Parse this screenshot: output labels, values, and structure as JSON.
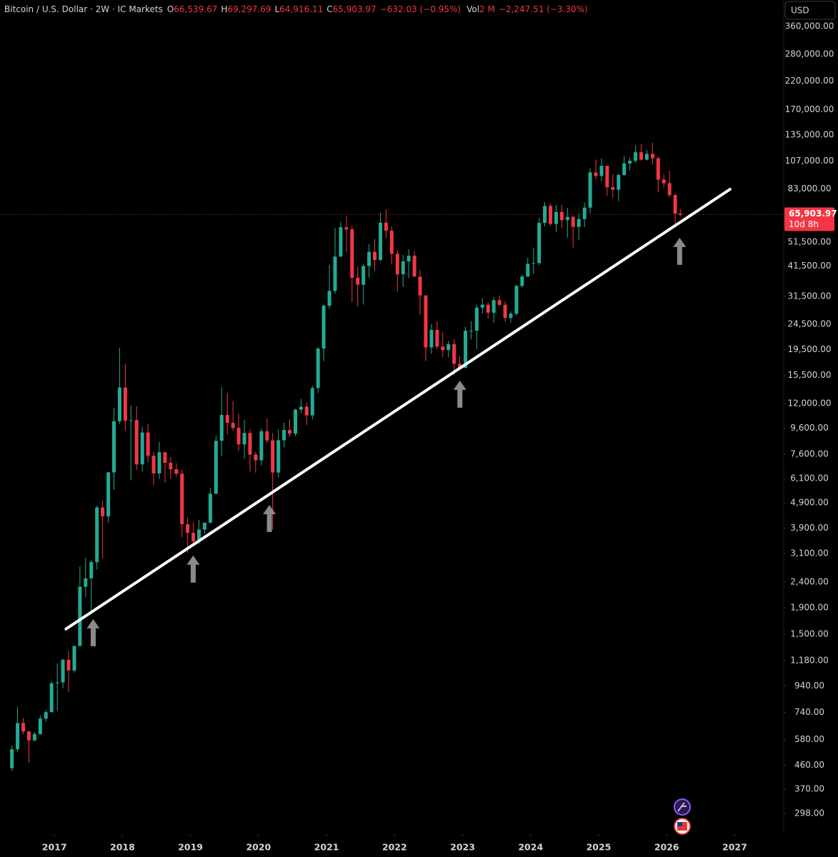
{
  "chart_data": {
    "type": "candlestick",
    "header": {
      "symbol": "Bitcoin / U.S. Dollar · 2W · IC Markets",
      "ohlc": [
        {
          "key": "O",
          "value": "66,539.67"
        },
        {
          "key": "H",
          "value": "69,297.69"
        },
        {
          "key": "L",
          "value": "64,916.11"
        },
        {
          "key": "C",
          "value": "65,903.97"
        }
      ],
      "change": "−632.03 (−0.95%)",
      "volume": {
        "key": "Vol",
        "value": "2 M",
        "change": "−2,247.51 (−3.30%)"
      }
    },
    "currency": "USD",
    "log_scale": true,
    "grid": false,
    "up_color": "#22ab94",
    "down_color": "#f23645",
    "xlim": [
      2016.2,
      2027.72
    ],
    "xticks": [
      2017,
      2018,
      2019,
      2020,
      2021,
      2022,
      2023,
      2024,
      2025,
      2026,
      2027
    ],
    "ylim": [
      247,
      456500
    ],
    "yticks": [
      {
        "value": 360000,
        "label": "360,000.00"
      },
      {
        "value": 280000,
        "label": "280,000.00"
      },
      {
        "value": 220000,
        "label": "220,000.00"
      },
      {
        "value": 170000,
        "label": "170,000.00"
      },
      {
        "value": 135000,
        "label": "135,000.00"
      },
      {
        "value": 107000,
        "label": "107,000.00"
      },
      {
        "value": 83000,
        "label": "83,000.00"
      },
      {
        "value": 51500,
        "label": "51,500.00"
      },
      {
        "value": 41500,
        "label": "41,500.00"
      },
      {
        "value": 31500,
        "label": "31,500.00"
      },
      {
        "value": 24500,
        "label": "24,500.00"
      },
      {
        "value": 19500,
        "label": "19,500.00"
      },
      {
        "value": 15500,
        "label": "15,500.00"
      },
      {
        "value": 12000,
        "label": "12,000.00"
      },
      {
        "value": 9600,
        "label": "9,600.00"
      },
      {
        "value": 7600,
        "label": "7,600.00"
      },
      {
        "value": 6100,
        "label": "6,100.00"
      },
      {
        "value": 4900,
        "label": "4,900.00"
      },
      {
        "value": 3900,
        "label": "3,900.00"
      },
      {
        "value": 3100,
        "label": "3,100.00"
      },
      {
        "value": 2400,
        "label": "2,400.00"
      },
      {
        "value": 1900,
        "label": "1,900.00"
      },
      {
        "value": 1500,
        "label": "1,500.00"
      },
      {
        "value": 1180,
        "label": "1,180.00"
      },
      {
        "value": 940,
        "label": "940.00"
      },
      {
        "value": 740,
        "label": "740.00"
      },
      {
        "value": 580,
        "label": "580.00"
      },
      {
        "value": 460,
        "label": "460.00"
      },
      {
        "value": 370,
        "label": "370.00"
      },
      {
        "value": 298,
        "label": "298.00"
      }
    ],
    "price_line": {
      "value": 65903.97,
      "label": "65,903.97",
      "countdown": "10d 8h",
      "color": "#f23645"
    },
    "x": [
      2016.375,
      2016.458,
      2016.542,
      2016.625,
      2016.708,
      2016.792,
      2016.875,
      2016.958,
      2017.042,
      2017.125,
      2017.208,
      2017.292,
      2017.375,
      2017.458,
      2017.542,
      2017.625,
      2017.708,
      2017.792,
      2017.875,
      2017.958,
      2018.042,
      2018.125,
      2018.208,
      2018.292,
      2018.375,
      2018.458,
      2018.542,
      2018.625,
      2018.708,
      2018.792,
      2018.875,
      2018.958,
      2019.042,
      2019.125,
      2019.208,
      2019.292,
      2019.375,
      2019.458,
      2019.542,
      2019.625,
      2019.708,
      2019.792,
      2019.875,
      2019.958,
      2020.042,
      2020.125,
      2020.208,
      2020.292,
      2020.375,
      2020.458,
      2020.542,
      2020.625,
      2020.708,
      2020.792,
      2020.875,
      2020.958,
      2021.042,
      2021.125,
      2021.208,
      2021.292,
      2021.375,
      2021.458,
      2021.542,
      2021.625,
      2021.708,
      2021.792,
      2021.875,
      2021.958,
      2022.042,
      2022.125,
      2022.208,
      2022.292,
      2022.375,
      2022.458,
      2022.542,
      2022.625,
      2022.708,
      2022.792,
      2022.875,
      2022.958,
      2023.042,
      2023.125,
      2023.208,
      2023.292,
      2023.375,
      2023.458,
      2023.542,
      2023.625,
      2023.708,
      2023.792,
      2023.875,
      2023.958,
      2024.042,
      2024.125,
      2024.208,
      2024.292,
      2024.375,
      2024.458,
      2024.542,
      2024.625,
      2024.708,
      2024.792,
      2024.875,
      2024.958,
      2025.042,
      2025.125,
      2025.208,
      2025.292,
      2025.375,
      2025.458,
      2025.542,
      2025.625,
      2025.708,
      2025.792,
      2025.875,
      2025.958,
      2026.042,
      2026.125,
      2026.2
    ],
    "open": [
      448,
      531,
      673,
      624,
      575,
      609,
      700,
      742,
      963,
      970,
      1190,
      1080,
      1348,
      2300,
      2480,
      2870,
      4700,
      4340,
      6450,
      10230,
      13860,
      10280,
      10330,
      6930,
      9240,
      7490,
      6390,
      7730,
      7030,
      6630,
      6370,
      4040,
      3740,
      3460,
      3850,
      4100,
      5320,
      8570,
      10820,
      10080,
      9630,
      8300,
      9200,
      7570,
      7190,
      9350,
      8600,
      6440,
      8620,
      9450,
      9140,
      11350,
      11660,
      10780,
      13800,
      19700,
      28990,
      33140,
      45140,
      58800,
      57700,
      37300,
      35040,
      41460,
      47100,
      43790,
      61300,
      57000,
      46300,
      38500,
      43200,
      45500,
      37700,
      31800,
      19900,
      23300,
      20050,
      19430,
      20500,
      17170,
      16540,
      23140,
      23150,
      28480,
      29250,
      27220,
      30480,
      29230,
      25940,
      26970,
      34660,
      37720,
      42280,
      42580,
      61200,
      71300,
      60600,
      67500,
      62700,
      64600,
      58970,
      63300,
      70200,
      96400,
      93400,
      102400,
      84400,
      82500,
      94200,
      104600,
      107100,
      115700,
      108200,
      114000,
      109500,
      90400,
      87500,
      78600,
      66539.67
    ],
    "high": [
      550,
      780,
      704,
      626,
      620,
      720,
      755,
      980,
      1150,
      1200,
      1290,
      1350,
      2760,
      2980,
      2920,
      4770,
      5000,
      6470,
      11500,
      19800,
      17200,
      11800,
      11700,
      9750,
      9990,
      7780,
      8490,
      7760,
      7400,
      7000,
      6600,
      4300,
      4100,
      4200,
      4100,
      5600,
      9000,
      13880,
      13200,
      12300,
      10950,
      10370,
      9500,
      7750,
      9580,
      10500,
      9190,
      9470,
      10080,
      10400,
      11450,
      12480,
      12100,
      14100,
      19900,
      29300,
      41950,
      58350,
      61800,
      64900,
      59500,
      41300,
      42300,
      50500,
      52900,
      67000,
      69000,
      59100,
      47990,
      45800,
      48200,
      47400,
      40000,
      31900,
      24600,
      25200,
      22800,
      21100,
      21450,
      18400,
      23950,
      25250,
      29200,
      31000,
      29800,
      31400,
      31800,
      30200,
      27480,
      35000,
      38400,
      44700,
      49000,
      64000,
      73800,
      72800,
      71900,
      72000,
      70000,
      65100,
      66500,
      73600,
      99800,
      108300,
      109350,
      102500,
      95000,
      95700,
      111900,
      110500,
      123200,
      124500,
      117900,
      126200,
      111200,
      94500,
      97900,
      79500,
      69297.69
    ],
    "low": [
      436,
      520,
      606,
      470,
      570,
      605,
      680,
      740,
      750,
      920,
      890,
      1060,
      1340,
      2100,
      1840,
      2690,
      2970,
      4100,
      5500,
      10000,
      9400,
      6000,
      6600,
      6500,
      7050,
      5750,
      6070,
      5880,
      6100,
      6200,
      3600,
      3130,
      3400,
      3390,
      3700,
      4060,
      5300,
      7500,
      9080,
      9400,
      7800,
      7300,
      6500,
      6430,
      6870,
      8400,
      3850,
      6150,
      8100,
      8900,
      8950,
      10990,
      9900,
      10400,
      13200,
      17600,
      28200,
      32300,
      44950,
      47000,
      30000,
      28800,
      29300,
      37300,
      39600,
      43300,
      53300,
      42000,
      32950,
      34300,
      37200,
      37600,
      26700,
      17600,
      18800,
      19600,
      18200,
      18200,
      15480,
      16300,
      16500,
      21400,
      19550,
      26950,
      25800,
      24800,
      28900,
      25150,
      24900,
      26550,
      34100,
      37600,
      38500,
      41900,
      59300,
      59600,
      56500,
      58400,
      53500,
      49000,
      52500,
      58900,
      66800,
      90500,
      89200,
      78200,
      76600,
      74400,
      93300,
      98200,
      105100,
      107300,
      107300,
      103500,
      80600,
      84000,
      77000,
      60000,
      64916.11
    ],
    "close": [
      531,
      673,
      624,
      575,
      609,
      700,
      742,
      963,
      970,
      1190,
      1080,
      1348,
      2300,
      2480,
      2870,
      4700,
      4340,
      6450,
      10230,
      13860,
      10280,
      10330,
      6930,
      9240,
      7490,
      6390,
      7730,
      7030,
      6630,
      6370,
      4040,
      3740,
      3460,
      3850,
      4100,
      5320,
      8570,
      10820,
      10080,
      9630,
      8300,
      9200,
      7570,
      7190,
      9350,
      8600,
      6440,
      8620,
      9450,
      9140,
      11350,
      11660,
      10780,
      13800,
      19700,
      28990,
      33140,
      45140,
      58800,
      57700,
      37300,
      35040,
      41460,
      47100,
      43790,
      61300,
      57000,
      46300,
      38500,
      43200,
      45500,
      37700,
      31800,
      19900,
      23300,
      20050,
      19430,
      20500,
      17170,
      16540,
      23140,
      23150,
      28480,
      29250,
      27220,
      30480,
      29230,
      25940,
      26970,
      34660,
      37720,
      42280,
      42580,
      61200,
      71300,
      60600,
      67500,
      62700,
      64600,
      58970,
      63300,
      70200,
      96400,
      93400,
      102400,
      84400,
      82500,
      94200,
      104600,
      107100,
      115700,
      108200,
      114000,
      109500,
      90400,
      87500,
      78600,
      66540,
      65903.97
    ],
    "annotations": {
      "trendline": {
        "x": [
          2017.17,
          2026.93
        ],
        "y": [
          1571,
          82800
        ],
        "color": "#ffffff"
      },
      "arrows": {
        "x": [
          2017.57,
          2019.04,
          2020.16,
          2022.96,
          2026.19
        ],
        "y": [
          1718,
          3048,
          4810,
          14760,
          53500
        ],
        "color": "#8a8a8a"
      }
    }
  }
}
